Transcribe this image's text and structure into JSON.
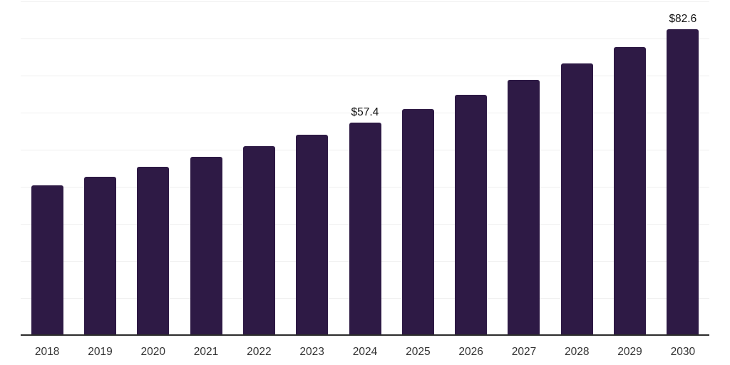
{
  "chart_data": {
    "type": "bar",
    "title": "",
    "xlabel": "",
    "ylabel": "",
    "categories": [
      "2018",
      "2019",
      "2020",
      "2021",
      "2022",
      "2023",
      "2024",
      "2025",
      "2026",
      "2027",
      "2028",
      "2029",
      "2030"
    ],
    "values": [
      40.3,
      42.7,
      45.3,
      48.1,
      50.9,
      54.1,
      57.4,
      61.0,
      64.8,
      68.8,
      73.2,
      77.7,
      82.6
    ],
    "annotations": [
      {
        "index": 6,
        "text": "$57.4"
      },
      {
        "index": 12,
        "text": "$82.6"
      }
    ],
    "ylim": [
      0,
      90
    ],
    "gridline_step": 10,
    "grid": "horizontal",
    "y_tick_labels_visible": false,
    "legend": "none",
    "colors": {
      "bar": "#2E1A45",
      "axis": "#2B2B2B",
      "gridline": "#EFEFEF",
      "tick_label": "#333333",
      "data_label": "#111111",
      "background": "#FFFFFF"
    }
  }
}
